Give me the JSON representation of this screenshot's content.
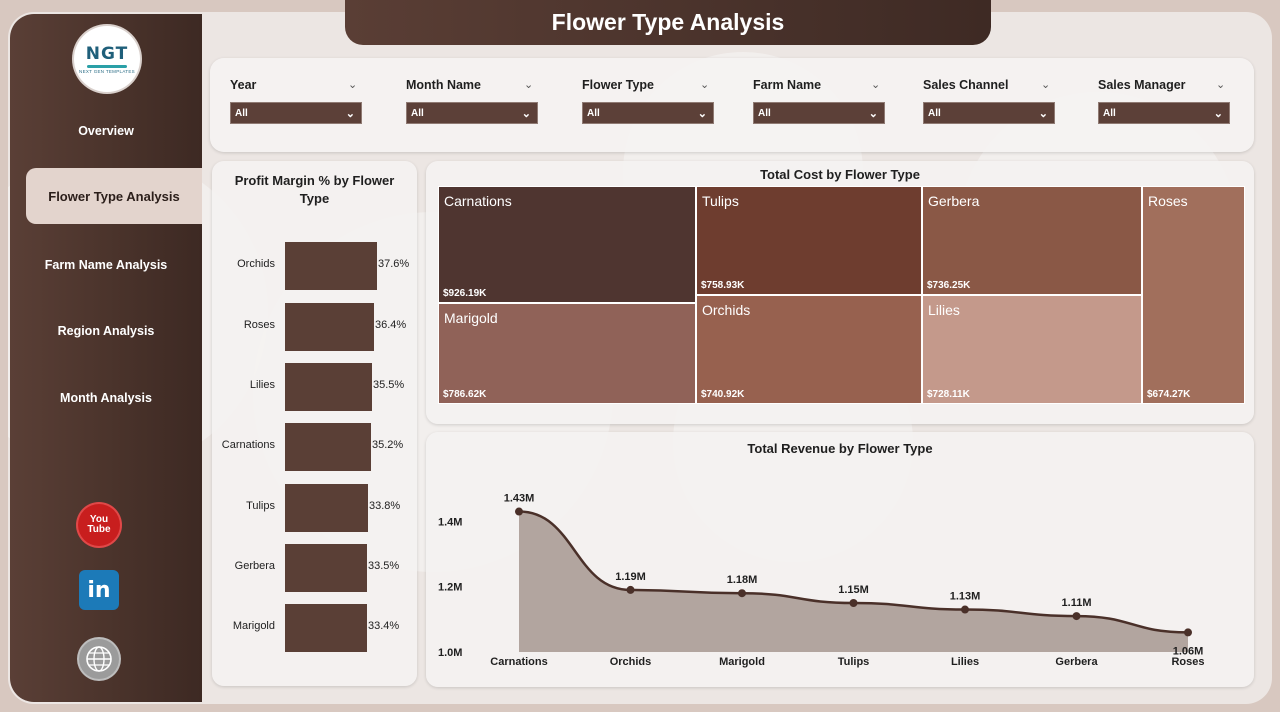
{
  "colors": {
    "sidebar": "#4a332b",
    "accent_dark": "#5a3f36",
    "treemap": [
      "#4f3530",
      "#6e3d2f",
      "#8a5846",
      "#a16f5c",
      "#906258",
      "#97614f",
      "#c4998b"
    ],
    "revenue_area": "#b2a59f"
  },
  "logo": {
    "main": "NGT",
    "sub": "NEXT GEN TEMPLATES"
  },
  "title": "Flower Type Analysis",
  "nav": [
    {
      "label": "Overview"
    },
    {
      "label": "Flower Type Analysis"
    },
    {
      "label": "Farm Name Analysis"
    },
    {
      "label": "Region Analysis"
    },
    {
      "label": "Month Analysis"
    }
  ],
  "social": {
    "youtube_text_1": "You",
    "youtube_text_2": "Tube",
    "linkedin_text": "in"
  },
  "filters": [
    {
      "label": "Year",
      "value": "All"
    },
    {
      "label": "Month Name",
      "value": "All"
    },
    {
      "label": "Flower Type",
      "value": "All"
    },
    {
      "label": "Farm Name",
      "value": "All"
    },
    {
      "label": "Sales Channel",
      "value": "All"
    },
    {
      "label": "Sales Manager",
      "value": "All"
    }
  ],
  "chart_data": [
    {
      "type": "bar",
      "orientation": "horizontal",
      "title": "Profit Margin % by Flower Type",
      "categories": [
        "Orchids",
        "Roses",
        "Lilies",
        "Carnations",
        "Tulips",
        "Gerbera",
        "Marigold"
      ],
      "values": [
        37.6,
        36.4,
        35.5,
        35.2,
        33.8,
        33.5,
        33.4
      ],
      "data_labels": [
        "37.6%",
        "36.4%",
        "35.5%",
        "35.2%",
        "33.8%",
        "33.5%",
        "33.4%"
      ]
    },
    {
      "type": "treemap",
      "title": "Total Cost by Flower Type",
      "categories": [
        "Carnations",
        "Tulips",
        "Gerbera",
        "Roses",
        "Marigold",
        "Orchids",
        "Lilies"
      ],
      "values": [
        926.19,
        758.93,
        736.25,
        674.27,
        786.62,
        740.92,
        728.11
      ],
      "data_labels": [
        "$926.19K",
        "$758.93K",
        "$736.25K",
        "$674.27K",
        "$786.62K",
        "$740.92K",
        "$728.11K"
      ]
    },
    {
      "type": "area",
      "title": "Total Revenue by Flower Type",
      "categories": [
        "Carnations",
        "Orchids",
        "Marigold",
        "Tulips",
        "Lilies",
        "Gerbera",
        "Roses"
      ],
      "values": [
        1.43,
        1.19,
        1.18,
        1.15,
        1.13,
        1.11,
        1.06
      ],
      "data_labels": [
        "1.43M",
        "1.19M",
        "1.18M",
        "1.15M",
        "1.13M",
        "1.11M",
        "1.06M"
      ],
      "yticks": [
        "1.0M",
        "1.2M",
        "1.4M"
      ],
      "ylim": [
        1.0,
        1.45
      ]
    }
  ]
}
